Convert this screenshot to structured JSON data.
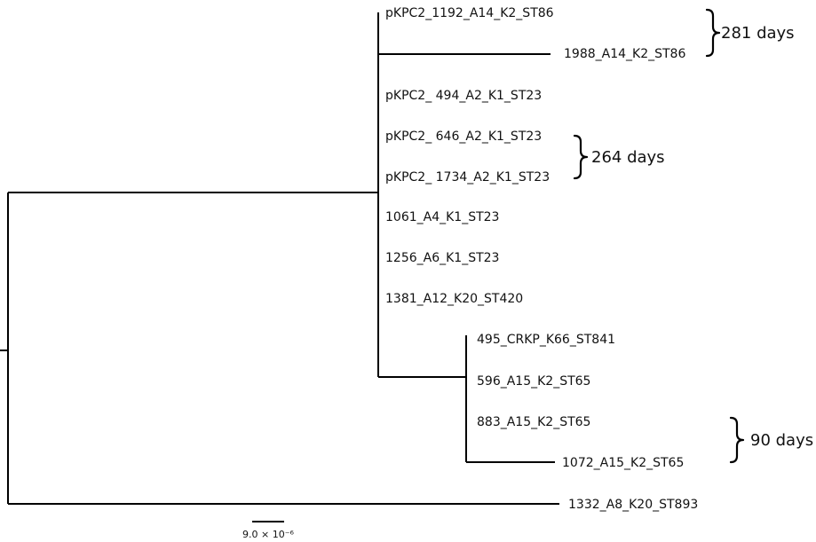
{
  "tree": {
    "leaves": [
      {
        "id": "l1",
        "label": "pKPC2_1192_A14_K2_ST86"
      },
      {
        "id": "l2",
        "label": "1988_A14_K2_ST86"
      },
      {
        "id": "l3",
        "label": "pKPC2_ 494_A2_K1_ST23"
      },
      {
        "id": "l4",
        "label": "pKPC2_ 646_A2_K1_ST23"
      },
      {
        "id": "l5",
        "label": "pKPC2_ 1734_A2_K1_ST23"
      },
      {
        "id": "l6",
        "label": "1061_A4_K1_ST23"
      },
      {
        "id": "l7",
        "label": "1256_A6_K1_ST23"
      },
      {
        "id": "l8",
        "label": "1381_A12_K20_ST420"
      },
      {
        "id": "l9",
        "label": "495_CRKP_K66_ST841"
      },
      {
        "id": "l10",
        "label": "596_A15_K2_ST65"
      },
      {
        "id": "l11",
        "label": "883_A15_K2_ST65"
      },
      {
        "id": "l12",
        "label": "1072_A15_K2_ST65"
      },
      {
        "id": "l13",
        "label": "1332_A8_K20_ST893"
      }
    ],
    "annotations": [
      {
        "id": "a1",
        "label": "281 days",
        "leaves": [
          "l1",
          "l2"
        ]
      },
      {
        "id": "a2",
        "label": "264 days",
        "leaves": [
          "l4",
          "l5"
        ]
      },
      {
        "id": "a3",
        "label": "90 days",
        "leaves": [
          "l11",
          "l12"
        ]
      }
    ],
    "scale_bar": {
      "label": "9.0 × 10⁻⁶"
    }
  }
}
